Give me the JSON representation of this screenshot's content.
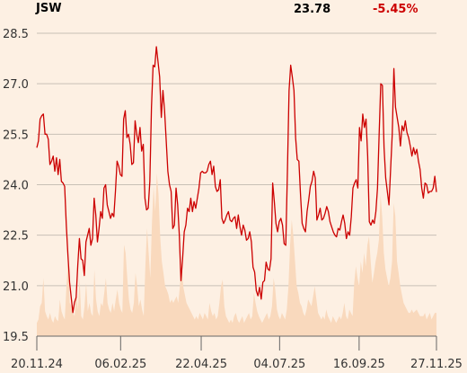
{
  "header": {
    "ticker": "JSW",
    "price": "23.78",
    "change": "-5.45%"
  },
  "colors": {
    "background": "#fdf0e3",
    "price_line": "#cc0000",
    "volume_fill": "#f9d9bd",
    "grid": "#c8c0b6",
    "change_negative": "#cc0000"
  },
  "chart_data": {
    "type": "line",
    "ylim": [
      19.5,
      28.5
    ],
    "y_ticks": [
      19.5,
      21.0,
      22.5,
      24.0,
      25.5,
      27.0,
      28.5
    ],
    "y_tick_labels": [
      "19.5",
      "21.0",
      "22.5",
      "24.0",
      "25.5",
      "27.0",
      "28.5"
    ],
    "x_tick_labels": [
      "20.11.24",
      "06.02.25",
      "22.04.25",
      "04.07.25",
      "16.09.25",
      "27.11.25"
    ],
    "x_tick_positions": [
      0,
      78,
      153,
      226,
      300,
      372
    ],
    "x_range": [
      0,
      372
    ],
    "grid": true,
    "series": [
      {
        "values": [
          25.1,
          25.3,
          25.95,
          26.05,
          26.1,
          25.5,
          25.5,
          25.35,
          24.6,
          24.7,
          24.85,
          24.4,
          24.8,
          24.3,
          24.75,
          24.1,
          24.05,
          23.95,
          22.8,
          21.9,
          21.1,
          20.65,
          20.2,
          20.5,
          20.65,
          21.6,
          22.4,
          21.8,
          21.75,
          21.3,
          22.3,
          22.5,
          22.7,
          22.2,
          22.4,
          23.6,
          23.1,
          22.3,
          22.7,
          23.2,
          23.0,
          23.9,
          24.0,
          23.4,
          23.2,
          23.0,
          23.15,
          23.05,
          23.8,
          24.7,
          24.55,
          24.3,
          24.25,
          25.95,
          26.2,
          25.4,
          25.5,
          25.2,
          24.6,
          24.65,
          25.9,
          25.5,
          25.25,
          25.7,
          25.0,
          25.2,
          23.6,
          23.25,
          23.3,
          24.1,
          26.3,
          27.55,
          27.5,
          28.1,
          27.65,
          27.2,
          26.0,
          26.8,
          26.2,
          25.3,
          24.4,
          24.0,
          23.8,
          22.7,
          22.8,
          23.9,
          23.4,
          22.5,
          21.15,
          21.8,
          22.6,
          22.8,
          23.3,
          23.2,
          23.6,
          23.2,
          23.5,
          23.3,
          23.6,
          23.9,
          24.35,
          24.4,
          24.35,
          24.35,
          24.4,
          24.6,
          24.7,
          24.3,
          24.55,
          23.95,
          23.8,
          23.85,
          24.15,
          23.0,
          22.85,
          22.95,
          23.1,
          23.2,
          22.95,
          22.9,
          23.0,
          23.05,
          22.7,
          23.1,
          22.75,
          22.5,
          22.8,
          22.65,
          22.35,
          22.4,
          22.6,
          22.3,
          21.55,
          21.4,
          20.85,
          20.7,
          20.95,
          20.6,
          21.1,
          21.15,
          21.7,
          21.5,
          21.45,
          21.8,
          24.05,
          23.5,
          22.85,
          22.6,
          22.9,
          23.0,
          22.8,
          22.25,
          22.2,
          24.4,
          26.8,
          27.55,
          27.2,
          26.8,
          25.4,
          24.75,
          24.7,
          23.7,
          22.85,
          22.7,
          22.6,
          23.2,
          23.55,
          23.95,
          24.1,
          24.4,
          24.2,
          22.95,
          23.1,
          23.3,
          22.95,
          23.0,
          23.15,
          23.35,
          23.2,
          22.9,
          22.75,
          22.6,
          22.5,
          22.45,
          22.7,
          22.65,
          22.9,
          23.1,
          22.85,
          22.4,
          22.6,
          22.5,
          23.05,
          23.9,
          24.05,
          24.15,
          23.9,
          25.7,
          25.3,
          26.1,
          25.7,
          25.95,
          24.85,
          22.9,
          22.8,
          22.95,
          22.85,
          23.2,
          23.9,
          25.5,
          27.0,
          26.95,
          25.1,
          24.2,
          23.8,
          23.4,
          24.45,
          25.5,
          27.45,
          26.3,
          26.0,
          25.7,
          25.15,
          25.75,
          25.6,
          25.9,
          25.55,
          25.4,
          25.15,
          24.85,
          25.1,
          24.9,
          25.05,
          24.7,
          24.45,
          23.9,
          23.6,
          24.05,
          24.0,
          23.75,
          23.8,
          23.8,
          23.9,
          24.25,
          23.78
        ]
      }
    ],
    "volume": {
      "relative_values": [
        0.08,
        0.1,
        0.18,
        0.2,
        0.35,
        0.15,
        0.12,
        0.1,
        0.14,
        0.1,
        0.08,
        0.12,
        0.1,
        0.09,
        0.22,
        0.15,
        0.12,
        0.1,
        0.3,
        0.45,
        0.2,
        0.18,
        0.14,
        0.12,
        0.28,
        0.16,
        0.35,
        0.12,
        0.1,
        0.18,
        0.32,
        0.15,
        0.2,
        0.14,
        0.12,
        0.4,
        0.22,
        0.15,
        0.12,
        0.2,
        0.18,
        0.26,
        0.35,
        0.2,
        0.16,
        0.14,
        0.2,
        0.15,
        0.22,
        0.28,
        0.2,
        0.16,
        0.14,
        0.55,
        0.5,
        0.35,
        0.22,
        0.16,
        0.14,
        0.2,
        0.38,
        0.3,
        0.18,
        0.22,
        0.16,
        0.12,
        0.42,
        0.65,
        0.5,
        0.35,
        0.68,
        0.9,
        0.75,
        0.98,
        0.85,
        0.6,
        0.45,
        0.38,
        0.3,
        0.28,
        0.25,
        0.2,
        0.22,
        0.2,
        0.22,
        0.24,
        0.2,
        0.3,
        0.45,
        0.3,
        0.25,
        0.2,
        0.18,
        0.16,
        0.14,
        0.12,
        0.1,
        0.12,
        0.1,
        0.14,
        0.12,
        0.1,
        0.14,
        0.12,
        0.1,
        0.2,
        0.15,
        0.12,
        0.14,
        0.1,
        0.12,
        0.2,
        0.3,
        0.34,
        0.18,
        0.12,
        0.1,
        0.08,
        0.1,
        0.08,
        0.12,
        0.14,
        0.1,
        0.08,
        0.1,
        0.12,
        0.08,
        0.1,
        0.12,
        0.14,
        0.1,
        0.12,
        0.26,
        0.2,
        0.15,
        0.12,
        0.1,
        0.08,
        0.1,
        0.12,
        0.14,
        0.1,
        0.12,
        0.18,
        0.35,
        0.28,
        0.16,
        0.12,
        0.1,
        0.14,
        0.12,
        0.1,
        0.16,
        0.3,
        0.55,
        0.7,
        0.6,
        0.45,
        0.3,
        0.26,
        0.2,
        0.18,
        0.14,
        0.12,
        0.16,
        0.22,
        0.2,
        0.18,
        0.24,
        0.3,
        0.22,
        0.14,
        0.12,
        0.1,
        0.12,
        0.1,
        0.16,
        0.12,
        0.1,
        0.08,
        0.12,
        0.1,
        0.08,
        0.1,
        0.12,
        0.1,
        0.14,
        0.2,
        0.12,
        0.1,
        0.16,
        0.14,
        0.12,
        0.32,
        0.42,
        0.35,
        0.3,
        0.45,
        0.38,
        0.5,
        0.42,
        0.55,
        0.6,
        0.45,
        0.32,
        0.38,
        0.45,
        0.5,
        0.58,
        0.85,
        0.72,
        0.5,
        0.4,
        0.35,
        0.3,
        0.35,
        0.45,
        0.8,
        0.72,
        0.45,
        0.38,
        0.3,
        0.25,
        0.2,
        0.18,
        0.16,
        0.14,
        0.14,
        0.16,
        0.14,
        0.15,
        0.16,
        0.14,
        0.12,
        0.12,
        0.12,
        0.14,
        0.1,
        0.12,
        0.14,
        0.1,
        0.12,
        0.14,
        0.14
      ]
    }
  }
}
